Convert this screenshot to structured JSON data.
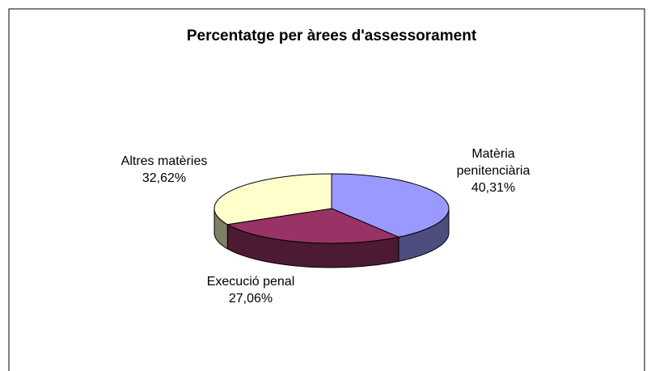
{
  "chart_data": {
    "type": "pie3d",
    "title": "Percentatge per àrees d'assessorament",
    "categories": [
      "Matèria penitenciària",
      "Execució penal",
      "Altres matèries"
    ],
    "values": [
      40.31,
      27.06,
      32.62
    ],
    "value_labels": [
      "40,31%",
      "27,06%",
      "32,62%"
    ],
    "colors": [
      "#9999ff",
      "#993366",
      "#ffffcc"
    ]
  }
}
